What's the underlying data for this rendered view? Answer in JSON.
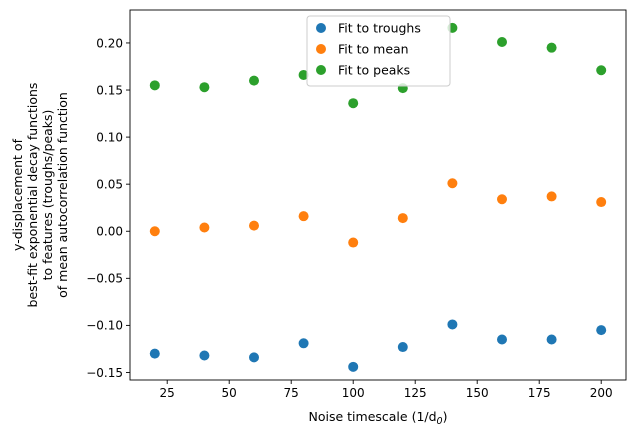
{
  "chart_data": {
    "type": "scatter",
    "xlabel": "Noise timescale (1/d",
    "xlabel_sub": "0",
    "xlabel_tail": ")",
    "ylabel_lines": [
      "y-displacement of",
      "best-fit exponential decay functions",
      "to features (troughs/peaks)",
      "of mean autocorrelation function"
    ],
    "xlim": [
      10,
      210
    ],
    "ylim": [
      -0.158,
      0.235
    ],
    "xticks": [
      25,
      50,
      75,
      100,
      125,
      150,
      175,
      200
    ],
    "yticks": [
      -0.15,
      -0.1,
      -0.05,
      0.0,
      0.05,
      0.1,
      0.15,
      0.2
    ],
    "ytick_labels": [
      "−0.15",
      "−0.10",
      "−0.05",
      "0.00",
      "0.05",
      "0.10",
      "0.15",
      "0.20"
    ],
    "grid": false,
    "legend_position": "top-center",
    "x": [
      20,
      40,
      60,
      80,
      100,
      120,
      140,
      160,
      180,
      200
    ],
    "series": [
      {
        "name": "Fit to troughs",
        "color": "#1f77b4",
        "values": [
          -0.13,
          -0.132,
          -0.134,
          -0.119,
          -0.144,
          -0.123,
          -0.099,
          -0.115,
          -0.115,
          -0.105
        ]
      },
      {
        "name": "Fit to mean",
        "color": "#ff7f0e",
        "values": [
          0.0,
          0.004,
          0.006,
          0.016,
          -0.012,
          0.014,
          0.051,
          0.034,
          0.037,
          0.031
        ]
      },
      {
        "name": "Fit to peaks",
        "color": "#2ca02c",
        "values": [
          0.155,
          0.153,
          0.16,
          0.166,
          0.136,
          0.152,
          0.216,
          0.201,
          0.195,
          0.171
        ]
      }
    ]
  }
}
